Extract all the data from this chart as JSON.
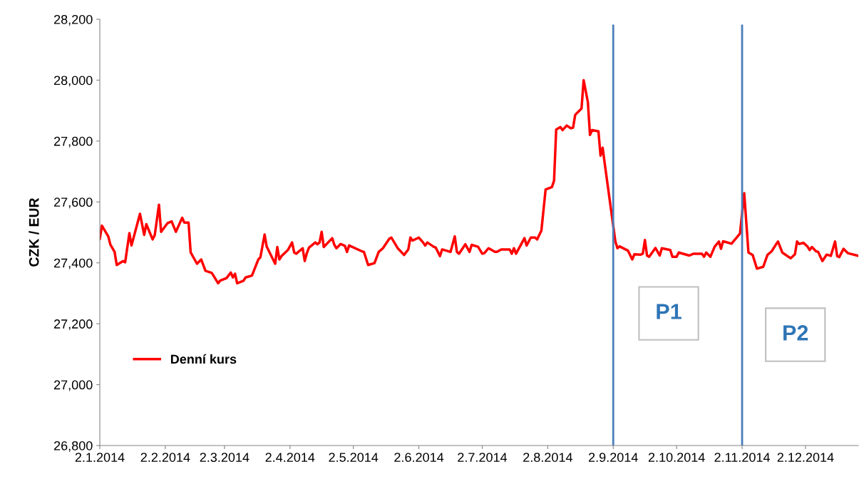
{
  "chart_data": {
    "type": "line",
    "ylabel": "CZK / EUR",
    "x": [
      "2014-01-02",
      "2014-01-03",
      "2014-01-06",
      "2014-01-07",
      "2014-01-09",
      "2014-01-10",
      "2014-01-13",
      "2014-01-14",
      "2014-01-16",
      "2014-01-17",
      "2014-01-21",
      "2014-01-23",
      "2014-01-24",
      "2014-01-27",
      "2014-01-28",
      "2014-01-30",
      "2014-01-31",
      "2014-02-03",
      "2014-02-05",
      "2014-02-07",
      "2014-02-10",
      "2014-02-11",
      "2014-02-13",
      "2014-02-14",
      "2014-02-17",
      "2014-02-19",
      "2014-02-21",
      "2014-02-24",
      "2014-02-27",
      "2014-02-28",
      "2014-03-03",
      "2014-03-05",
      "2014-03-06",
      "2014-03-07",
      "2014-03-08",
      "2014-03-11",
      "2014-03-12",
      "2014-03-15",
      "2014-03-18",
      "2014-03-19",
      "2014-03-21",
      "2014-03-22",
      "2014-03-26",
      "2014-03-27",
      "2014-03-28",
      "2014-03-29",
      "2014-04-01",
      "2014-04-03",
      "2014-04-04",
      "2014-04-05",
      "2014-04-08",
      "2014-04-09",
      "2014-04-10",
      "2014-04-11",
      "2014-04-14",
      "2014-04-15",
      "2014-04-16",
      "2014-04-17",
      "2014-04-18",
      "2014-04-22",
      "2014-04-23",
      "2014-04-24",
      "2014-04-26",
      "2014-04-28",
      "2014-04-29",
      "2014-04-30",
      "2014-05-06",
      "2014-05-07",
      "2014-05-09",
      "2014-05-12",
      "2014-05-14",
      "2014-05-16",
      "2014-05-19",
      "2014-05-20",
      "2014-05-23",
      "2014-05-26",
      "2014-05-28",
      "2014-05-29",
      "2014-05-30",
      "2014-06-02",
      "2014-06-04",
      "2014-06-05",
      "2014-06-06",
      "2014-06-09",
      "2014-06-10",
      "2014-06-12",
      "2014-06-13",
      "2014-06-17",
      "2014-06-19",
      "2014-06-20",
      "2014-06-21",
      "2014-06-24",
      "2014-06-26",
      "2014-06-27",
      "2014-06-30",
      "2014-07-02",
      "2014-07-03",
      "2014-07-05",
      "2014-07-08",
      "2014-07-09",
      "2014-07-11",
      "2014-07-15",
      "2014-07-16",
      "2014-07-17",
      "2014-07-18",
      "2014-07-22",
      "2014-07-23",
      "2014-07-25",
      "2014-07-27",
      "2014-07-28",
      "2014-07-30",
      "2014-08-01",
      "2014-08-04",
      "2014-08-05",
      "2014-08-06",
      "2014-08-08",
      "2014-08-09",
      "2014-08-11",
      "2014-08-13",
      "2014-08-14",
      "2014-08-15",
      "2014-08-18",
      "2014-08-19",
      "2014-08-21",
      "2014-08-22",
      "2014-08-23",
      "2014-08-26",
      "2014-08-27",
      "2014-08-28",
      "2014-08-29",
      "2014-09-03",
      "2014-09-04",
      "2014-09-05",
      "2014-09-09",
      "2014-09-11",
      "2014-09-12",
      "2014-09-15",
      "2014-09-16",
      "2014-09-17",
      "2014-09-18",
      "2014-09-19",
      "2014-09-22",
      "2014-09-24",
      "2014-09-25",
      "2014-09-29",
      "2014-09-30",
      "2014-10-02",
      "2014-10-03",
      "2014-10-08",
      "2014-10-10",
      "2014-10-14",
      "2014-10-15",
      "2014-10-16",
      "2014-10-18",
      "2014-10-20",
      "2014-10-22",
      "2014-10-23",
      "2014-10-24",
      "2014-10-28",
      "2014-11-01",
      "2014-11-03",
      "2014-11-05",
      "2014-11-07",
      "2014-11-09",
      "2014-11-12",
      "2014-11-14",
      "2014-11-16",
      "2014-11-18",
      "2014-11-19",
      "2014-11-21",
      "2014-11-25",
      "2014-11-27",
      "2014-11-28",
      "2014-11-29",
      "2014-12-01",
      "2014-12-03",
      "2014-12-04",
      "2014-12-05",
      "2014-12-07",
      "2014-12-08",
      "2014-12-10",
      "2014-12-12",
      "2014-12-14",
      "2014-12-16",
      "2014-12-17",
      "2014-12-18",
      "2014-12-20",
      "2014-12-22",
      "2014-12-27"
    ],
    "series": [
      {
        "name": "Denní kurs",
        "color": "#ff0000",
        "values": [
          27479,
          27522,
          27487,
          27460,
          27436,
          27393,
          27406,
          27402,
          27498,
          27457,
          27561,
          27492,
          27527,
          27477,
          27491,
          27591,
          27502,
          27530,
          27536,
          27502,
          27548,
          27532,
          27532,
          27434,
          27397,
          27411,
          27374,
          27367,
          27333,
          27342,
          27350,
          27368,
          27352,
          27364,
          27333,
          27341,
          27352,
          27358,
          27411,
          27418,
          27493,
          27453,
          27397,
          27452,
          27411,
          27422,
          27442,
          27467,
          27434,
          27430,
          27448,
          27406,
          27432,
          27450,
          27467,
          27461,
          27467,
          27502,
          27452,
          27481,
          27459,
          27448,
          27462,
          27456,
          27436,
          27457,
          27438,
          27436,
          27393,
          27399,
          27436,
          27448,
          27479,
          27483,
          27448,
          27426,
          27444,
          27483,
          27473,
          27483,
          27467,
          27457,
          27467,
          27453,
          27450,
          27422,
          27444,
          27436,
          27487,
          27436,
          27430,
          27461,
          27436,
          27459,
          27453,
          27430,
          27432,
          27448,
          27436,
          27436,
          27444,
          27444,
          27430,
          27448,
          27430,
          27481,
          27457,
          27483,
          27483,
          27477,
          27506,
          27641,
          27649,
          27670,
          27838,
          27846,
          27836,
          27851,
          27842,
          27844,
          27886,
          27907,
          28000,
          27928,
          27820,
          27836,
          27832,
          27752,
          27778,
          27725,
          27471,
          27448,
          27454,
          27440,
          27411,
          27428,
          27427,
          27430,
          27475,
          27424,
          27420,
          27449,
          27424,
          27448,
          27442,
          27420,
          27420,
          27434,
          27424,
          27430,
          27430,
          27420,
          27434,
          27420,
          27453,
          27470,
          27446,
          27471,
          27463,
          27496,
          27629,
          27434,
          27426,
          27381,
          27387,
          27426,
          27438,
          27460,
          27470,
          27434,
          27415,
          27428,
          27470,
          27462,
          27466,
          27453,
          27442,
          27452,
          27438,
          27436,
          27406,
          27427,
          27423,
          27470,
          27422,
          27419,
          27446,
          27432,
          27423
        ]
      }
    ],
    "xlim": [
      "2014-01-02",
      "2014-12-27"
    ],
    "xticks": [
      {
        "value": "2014-01-02",
        "label": "2.1.2014"
      },
      {
        "value": "2014-02-02",
        "label": "2.2.2014"
      },
      {
        "value": "2014-03-02",
        "label": "2.3.2014"
      },
      {
        "value": "2014-04-02",
        "label": "2.4.2014"
      },
      {
        "value": "2014-05-02",
        "label": "2.5.2014"
      },
      {
        "value": "2014-06-02",
        "label": "2.6.2014"
      },
      {
        "value": "2014-07-02",
        "label": "2.7.2014"
      },
      {
        "value": "2014-08-02",
        "label": "2.8.2014"
      },
      {
        "value": "2014-09-02",
        "label": "2.9.2014"
      },
      {
        "value": "2014-10-02",
        "label": "2.10.2014"
      },
      {
        "value": "2014-11-02",
        "label": "2.11.2014"
      },
      {
        "value": "2014-12-02",
        "label": "2.12.2014"
      }
    ],
    "ylim": [
      26800,
      28200
    ],
    "yticks": [
      {
        "value": 26800,
        "label": "26,800"
      },
      {
        "value": 27000,
        "label": "27,000"
      },
      {
        "value": 27200,
        "label": "27,200"
      },
      {
        "value": 27400,
        "label": "27,400"
      },
      {
        "value": 27600,
        "label": "27,600"
      },
      {
        "value": 27800,
        "label": "27,800"
      },
      {
        "value": 28000,
        "label": "28,000"
      },
      {
        "value": 28200,
        "label": "28,200"
      }
    ],
    "ref_lines": [
      {
        "axis": "x",
        "value": "2014-09-02",
        "color": "#4a7ebb"
      },
      {
        "axis": "x",
        "value": "2014-11-02",
        "color": "#4a7ebb"
      }
    ],
    "annotations": [
      "P1",
      "P2"
    ],
    "grid": false,
    "legend": "left",
    "marker": "none",
    "line_style": "solid"
  }
}
